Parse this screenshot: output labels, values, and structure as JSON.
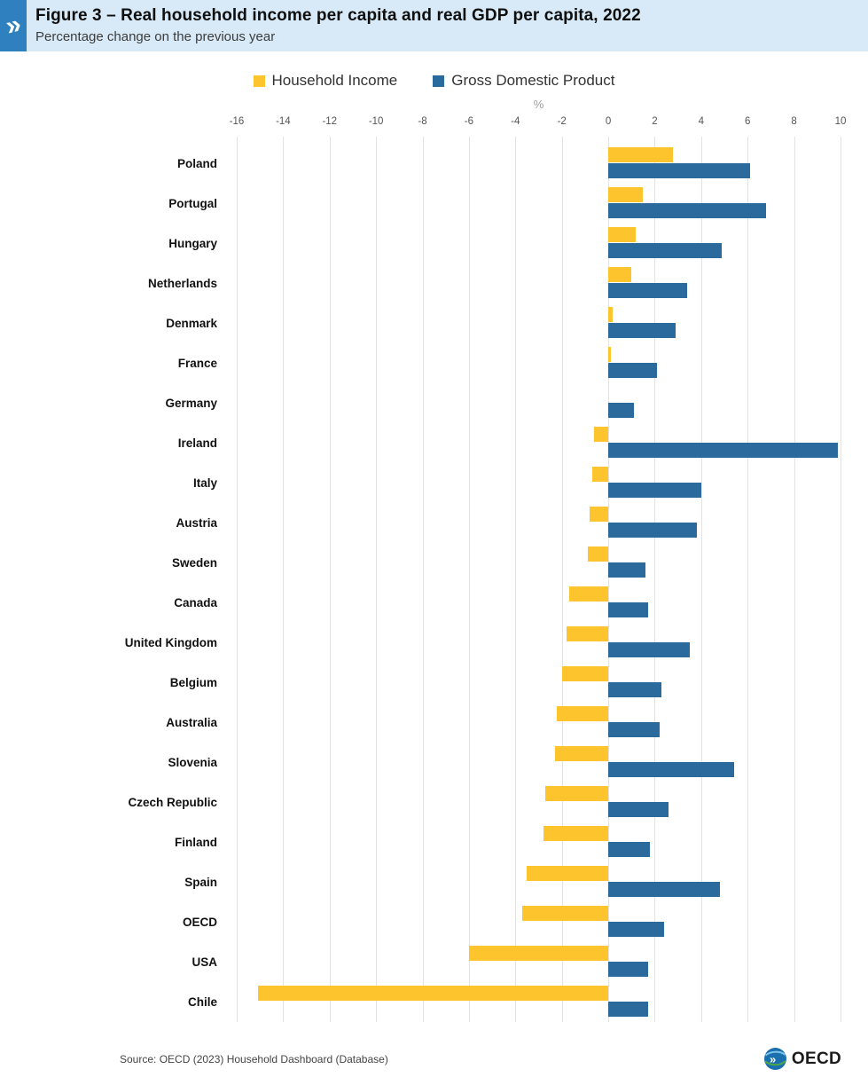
{
  "header": {
    "title": "Figure 3 – Real household income per capita and real GDP per capita, 2022",
    "subtitle": "Percentage change on the previous year"
  },
  "legend": {
    "items": [
      {
        "label": "Household Income",
        "color": "#FDC42E"
      },
      {
        "label": "Gross Domestic Product",
        "color": "#2A6A9D"
      }
    ]
  },
  "chart_data": {
    "type": "bar",
    "orientation": "horizontal",
    "title": "Figure 3 – Real household income per capita and real GDP per capita, 2022",
    "subtitle": "Percentage change on the previous year",
    "unit_label": "%",
    "xlim": [
      -16,
      10
    ],
    "xticks": [
      -16,
      -14,
      -12,
      -10,
      -8,
      -6,
      -4,
      -2,
      0,
      2,
      4,
      6,
      8,
      10
    ],
    "grid": true,
    "legend_position": "top-center",
    "categories": [
      "Poland",
      "Portugal",
      "Hungary",
      "Netherlands",
      "Denmark",
      "France",
      "Germany",
      "Ireland",
      "Italy",
      "Austria",
      "Sweden",
      "Canada",
      "United Kingdom",
      "Belgium",
      "Australia",
      "Slovenia",
      "Czech Republic",
      "Finland",
      "Spain",
      "OECD",
      "USA",
      "Chile"
    ],
    "series": [
      {
        "name": "Household Income",
        "color": "#FDC42E",
        "values": [
          2.8,
          1.5,
          1.2,
          1.0,
          0.2,
          0.1,
          0.0,
          -0.6,
          -0.7,
          -0.8,
          -0.9,
          -1.7,
          -1.8,
          -2.0,
          -2.2,
          -2.3,
          -2.7,
          -2.8,
          -3.5,
          -3.7,
          -6.0,
          -15.1
        ]
      },
      {
        "name": "Gross Domestic Product",
        "color": "#2A6A9D",
        "values": [
          6.1,
          6.8,
          4.9,
          3.4,
          2.9,
          2.1,
          1.1,
          9.9,
          4.0,
          3.8,
          1.6,
          1.7,
          3.5,
          2.3,
          2.2,
          5.4,
          2.6,
          1.8,
          4.8,
          2.4,
          1.7,
          1.7
        ]
      }
    ]
  },
  "footer": {
    "source": "Source: OECD (2023) Household Dashboard (Database)",
    "logo_text": "OECD"
  },
  "icons": {
    "header_chevron": "»",
    "logo_chevron": "»"
  }
}
